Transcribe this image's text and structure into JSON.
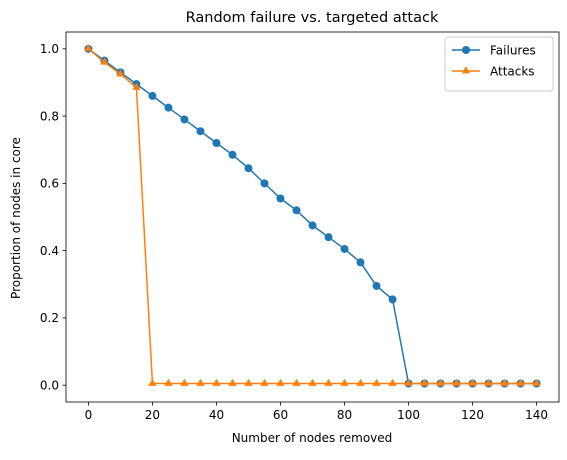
{
  "chart_data": {
    "type": "line",
    "title": "Random failure vs. targeted attack",
    "xlabel": "Number of nodes removed",
    "ylabel": "Proportion of nodes in core",
    "xlim": [
      -7,
      147
    ],
    "ylim": [
      -0.05,
      1.05
    ],
    "xticks": [
      0,
      20,
      40,
      60,
      80,
      100,
      120,
      140
    ],
    "yticks": [
      0.0,
      0.2,
      0.4,
      0.6,
      0.8,
      1.0
    ],
    "xtick_labels": [
      "0",
      "20",
      "40",
      "60",
      "80",
      "100",
      "120",
      "140"
    ],
    "ytick_labels": [
      "0.0",
      "0.2",
      "0.4",
      "0.6",
      "0.8",
      "1.0"
    ],
    "grid": false,
    "legend_position": "top-right",
    "x": [
      0,
      5,
      10,
      15,
      20,
      25,
      30,
      35,
      40,
      45,
      50,
      55,
      60,
      65,
      70,
      75,
      80,
      85,
      90,
      95,
      100,
      105,
      110,
      115,
      120,
      125,
      130,
      135,
      140
    ],
    "series": [
      {
        "name": "Failures",
        "marker": "circle",
        "color": "#1f77b4",
        "values": [
          1.0,
          0.965,
          0.93,
          0.895,
          0.86,
          0.825,
          0.79,
          0.755,
          0.72,
          0.685,
          0.645,
          0.6,
          0.555,
          0.52,
          0.475,
          0.44,
          0.405,
          0.365,
          0.295,
          0.255,
          0.005,
          0.005,
          0.005,
          0.005,
          0.005,
          0.005,
          0.005,
          0.005,
          0.005
        ]
      },
      {
        "name": "Attacks",
        "marker": "triangle",
        "color": "#ff7f0e",
        "values": [
          1.0,
          0.96,
          0.925,
          0.885,
          0.005,
          0.005,
          0.005,
          0.005,
          0.005,
          0.005,
          0.005,
          0.005,
          0.005,
          0.005,
          0.005,
          0.005,
          0.005,
          0.005,
          0.005,
          0.005,
          0.005,
          0.005,
          0.005,
          0.005,
          0.005,
          0.005,
          0.005,
          0.005,
          0.005
        ]
      }
    ]
  }
}
